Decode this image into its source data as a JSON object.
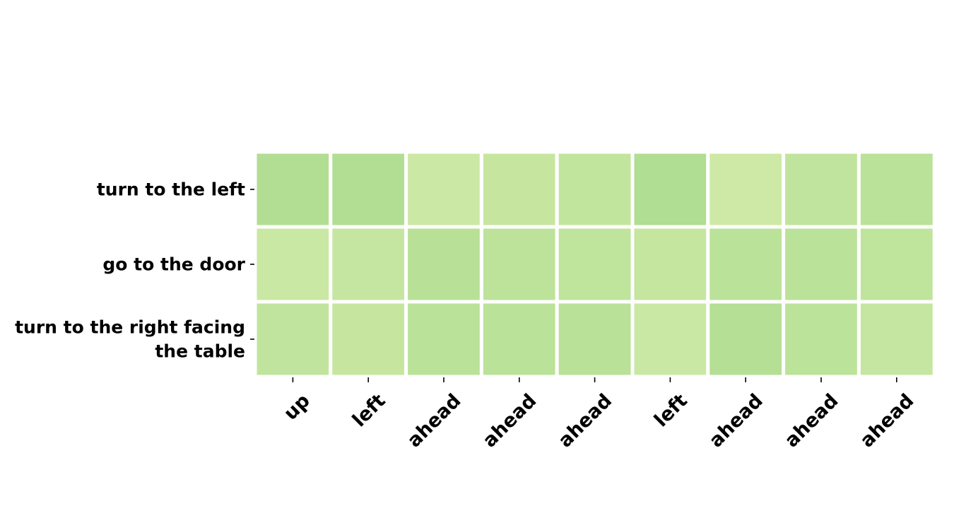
{
  "chart_data": {
    "type": "heatmap",
    "title": "",
    "xlabel": "",
    "ylabel": "",
    "rows": [
      [
        "turn to the left"
      ],
      [
        "go to the door"
      ],
      [
        "turn to the right facing",
        "the table"
      ]
    ],
    "columns": [
      "up",
      "left",
      "ahead",
      "ahead",
      "ahead",
      "left",
      "ahead",
      "ahead",
      "ahead"
    ],
    "values": [
      [
        0.72,
        0.72,
        0.18,
        0.3,
        0.38,
        0.76,
        0.15,
        0.42,
        0.55
      ],
      [
        0.22,
        0.32,
        0.58,
        0.48,
        0.44,
        0.34,
        0.52,
        0.52,
        0.44
      ],
      [
        0.42,
        0.3,
        0.54,
        0.52,
        0.56,
        0.22,
        0.66,
        0.5,
        0.32
      ]
    ],
    "color_range": [
      "#d4ecaa",
      "#a4d98a"
    ],
    "grid": false,
    "legend": false
  }
}
